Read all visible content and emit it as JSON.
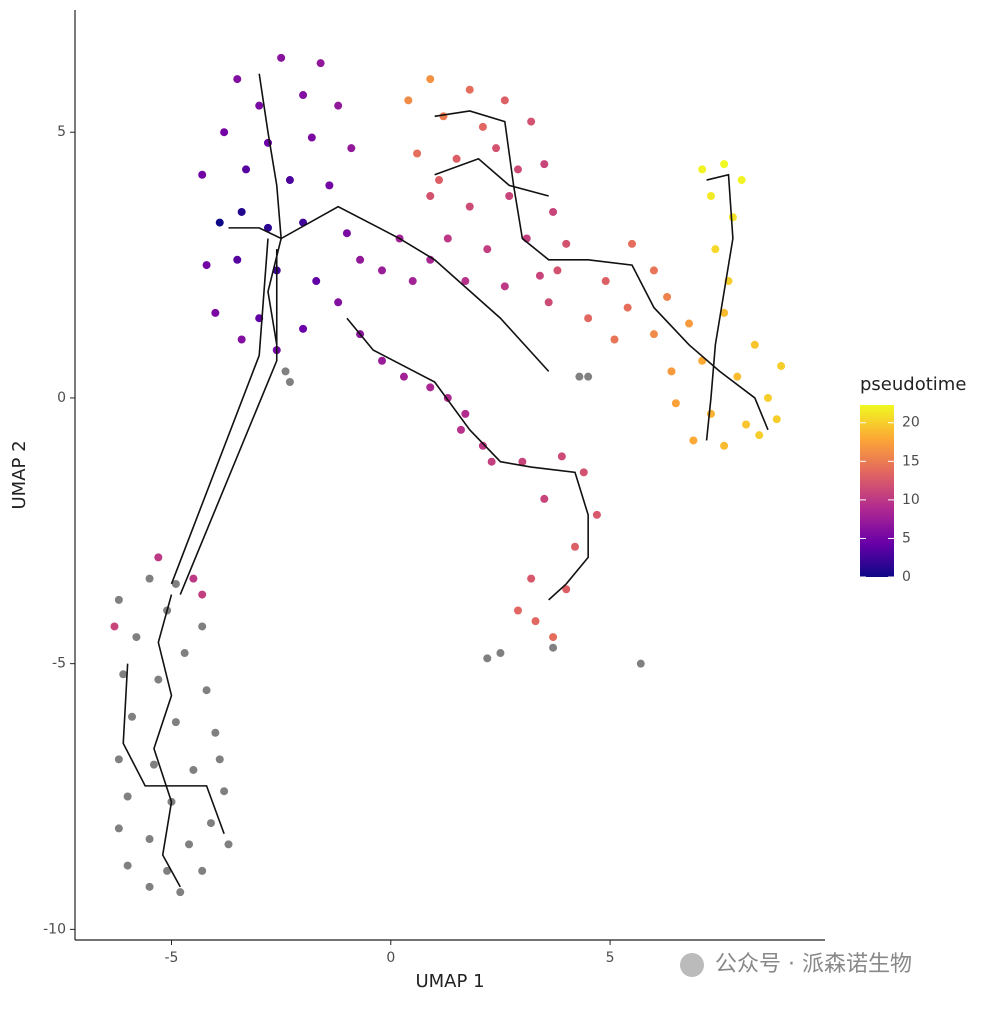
{
  "chart_data": {
    "type": "scatter",
    "x_label": "UMAP 1",
    "y_label": "UMAP 2",
    "xlim": [
      -7.2,
      9.9
    ],
    "ylim": [
      -10.2,
      7.3
    ],
    "xticks": [
      -5,
      0,
      5
    ],
    "yticks": [
      -10,
      -5,
      0,
      5
    ],
    "na_color": "#808080",
    "x": [
      -3.5,
      -2.5,
      -1.6,
      -3.0,
      -2.0,
      -1.2,
      -3.8,
      -2.8,
      -1.8,
      -0.9,
      -4.3,
      -3.3,
      -2.3,
      -1.4,
      -3.9,
      -3.4,
      -2.8,
      -2.0,
      -1.0,
      -4.2,
      -3.5,
      -2.6,
      -1.7,
      -0.7,
      -4.0,
      -3.0,
      -2.0,
      -1.2,
      -2.6,
      -3.4,
      -0.2,
      0.5,
      0.9,
      0.2,
      0.4,
      0.9,
      1.2,
      1.8,
      2.6,
      3.2,
      0.6,
      1.5,
      2.4,
      3.5,
      0.9,
      1.8,
      2.7,
      3.7,
      1.3,
      2.2,
      3.1,
      4.0,
      1.7,
      2.6,
      3.4,
      2.1,
      2.9,
      1.1,
      3.8,
      3.6,
      7.1,
      7.6,
      8.0,
      7.3,
      7.8,
      7.4,
      7.7,
      5.5,
      6.0,
      4.9,
      5.4,
      6.3,
      4.5,
      5.1,
      6.0,
      6.8,
      7.6,
      8.3,
      8.9,
      6.4,
      7.1,
      7.9,
      8.6,
      6.5,
      7.3,
      8.1,
      8.8,
      6.9,
      7.6,
      8.4,
      4.3,
      4.5,
      -0.7,
      -0.2,
      0.3,
      0.9,
      1.3,
      1.7,
      1.6,
      2.1,
      2.3,
      3.0,
      3.9,
      4.4,
      4.7,
      3.5,
      4.2,
      3.2,
      4.0,
      2.9,
      3.7,
      3.3,
      2.2,
      2.5,
      3.7,
      5.7,
      -2.4,
      -2.3,
      -5.3,
      -4.5,
      -4.3,
      -6.3,
      -5.5,
      -4.9,
      -6.2,
      -5.1,
      -4.3,
      -5.8,
      -4.7,
      -6.1,
      -5.3,
      -4.2,
      -5.9,
      -4.9,
      -4.0,
      -6.2,
      -5.4,
      -4.5,
      -3.8,
      -6.0,
      -5.0,
      -4.1,
      -6.2,
      -5.5,
      -4.6,
      -3.7,
      -6.0,
      -5.1,
      -4.3,
      -5.5,
      -4.8,
      -3.9
    ],
    "y": [
      6.0,
      6.4,
      6.3,
      5.5,
      5.7,
      5.5,
      5.0,
      4.8,
      4.9,
      4.7,
      4.2,
      4.3,
      4.1,
      4.0,
      3.3,
      3.5,
      3.2,
      3.3,
      3.1,
      2.5,
      2.6,
      2.4,
      2.2,
      2.6,
      1.6,
      1.5,
      1.3,
      1.8,
      0.9,
      1.1,
      2.4,
      2.2,
      2.6,
      3.0,
      5.6,
      6.0,
      5.3,
      5.8,
      5.6,
      5.2,
      4.6,
      4.5,
      4.7,
      4.4,
      3.8,
      3.6,
      3.8,
      3.5,
      3.0,
      2.8,
      3.0,
      2.9,
      2.2,
      2.1,
      2.3,
      5.1,
      4.3,
      4.1,
      2.4,
      1.8,
      4.3,
      4.4,
      4.1,
      3.8,
      3.4,
      2.8,
      2.2,
      2.9,
      2.4,
      2.2,
      1.7,
      1.9,
      1.5,
      1.1,
      1.2,
      1.4,
      1.6,
      1.0,
      0.6,
      0.5,
      0.7,
      0.4,
      0.0,
      -0.1,
      -0.3,
      -0.5,
      -0.4,
      -0.8,
      -0.9,
      -0.7,
      0.4,
      0.4,
      1.2,
      0.7,
      0.4,
      0.2,
      0.0,
      -0.3,
      -0.6,
      -0.9,
      -1.2,
      -1.2,
      -1.1,
      -1.4,
      -2.2,
      -1.9,
      -2.8,
      -3.4,
      -3.6,
      -4.0,
      -4.5,
      -4.2,
      -4.9,
      -4.8,
      -4.7,
      -5.0,
      0.5,
      0.3,
      -3.0,
      -3.4,
      -3.7,
      -4.3,
      -3.4,
      -3.5,
      -3.8,
      -4.0,
      -4.3,
      -4.5,
      -4.8,
      -5.2,
      -5.3,
      -5.5,
      -6.0,
      -6.1,
      -6.3,
      -6.8,
      -6.9,
      -7.0,
      -7.4,
      -7.5,
      -7.6,
      -8.0,
      -8.1,
      -8.3,
      -8.4,
      -8.4,
      -8.8,
      -8.9,
      -8.9,
      -9.2,
      -9.3,
      -6.8
    ],
    "pseudotime": [
      6,
      6.5,
      7,
      5.5,
      6,
      7,
      5,
      4.5,
      5.5,
      7,
      5,
      3.5,
      3,
      5,
      0,
      1,
      1.5,
      2.5,
      5.5,
      5,
      3.5,
      2.5,
      4,
      7,
      5.5,
      4,
      4.5,
      6,
      5,
      6,
      7.5,
      8,
      8.5,
      8,
      16,
      16.5,
      15,
      14,
      13,
      12,
      14,
      13,
      12,
      11,
      12,
      11.5,
      11,
      11,
      10,
      10.5,
      10.5,
      12,
      9.5,
      10,
      11,
      13.5,
      11.5,
      13,
      12,
      11.5,
      22,
      22.3,
      22,
      21.5,
      21,
      20.5,
      20,
      14,
      14.5,
      13,
      14,
      15.5,
      13.5,
      14.5,
      16,
      17,
      19,
      19.5,
      20,
      17,
      18,
      19,
      20,
      17.5,
      18.5,
      19.5,
      20,
      18,
      19,
      20,
      null,
      null,
      6.5,
      7.5,
      8,
      8.5,
      9,
      9,
      9.5,
      10,
      10.5,
      11,
      11.5,
      12,
      12.5,
      11,
      13,
      12.5,
      13,
      13.5,
      14,
      13.5,
      null,
      null,
      null,
      null,
      null,
      null,
      10,
      10,
      10.5,
      11,
      null,
      null,
      null,
      null,
      null,
      null,
      null,
      null,
      null,
      null,
      null,
      null,
      null,
      null,
      null,
      null,
      null,
      null,
      null,
      null,
      null,
      null,
      null,
      null,
      null,
      null,
      null,
      null,
      null,
      null
    ],
    "trajectory": [
      {
        "x": [
          -3.7,
          -3.0,
          -2.5,
          -1.2,
          0.2,
          1.0,
          2.5,
          3.6
        ],
        "y": [
          3.2,
          3.2,
          3.0,
          3.6,
          3.0,
          2.6,
          1.5,
          0.5
        ]
      },
      {
        "x": [
          -3.0,
          -2.8,
          -2.6,
          -2.5,
          -2.8,
          -2.6
        ],
        "y": [
          6.1,
          5.0,
          4.0,
          3.0,
          2.0,
          1.0
        ]
      },
      {
        "x": [
          -2.8,
          -3.0,
          -5.0
        ],
        "y": [
          3.0,
          0.8,
          -3.5
        ]
      },
      {
        "x": [
          -2.6,
          -2.6,
          -4.8
        ],
        "y": [
          2.8,
          0.7,
          -3.7
        ]
      },
      {
        "x": [
          -1.0,
          -0.4,
          1.0,
          1.8,
          2.5,
          3.2,
          4.2,
          4.5,
          4.5,
          4.0,
          3.6
        ],
        "y": [
          1.5,
          0.9,
          0.3,
          -0.6,
          -1.2,
          -1.3,
          -1.4,
          -2.2,
          -3.0,
          -3.5,
          -3.8
        ]
      },
      {
        "x": [
          1.0,
          1.8,
          2.6,
          2.8,
          3.0,
          3.6,
          4.5,
          5.5,
          6.0,
          6.8,
          7.5,
          8.3,
          8.6
        ],
        "y": [
          5.3,
          5.4,
          5.2,
          4.0,
          3.0,
          2.6,
          2.6,
          2.5,
          1.7,
          1.0,
          0.5,
          0.0,
          -0.6
        ]
      },
      {
        "x": [
          1.0,
          2.0,
          2.7,
          3.6
        ],
        "y": [
          4.2,
          4.5,
          4.0,
          3.8
        ]
      },
      {
        "x": [
          7.2,
          7.7,
          7.8,
          7.6,
          7.4,
          7.3,
          7.2
        ],
        "y": [
          4.1,
          4.2,
          3.0,
          2.0,
          1.0,
          0.0,
          -0.8
        ]
      },
      {
        "x": [
          -5.0,
          -5.3,
          -5.0,
          -5.4,
          -5.0,
          -5.2,
          -4.8
        ],
        "y": [
          -3.7,
          -4.6,
          -5.6,
          -6.6,
          -7.6,
          -8.6,
          -9.2
        ]
      },
      {
        "x": [
          -6.0,
          -6.1,
          -5.6,
          -4.2,
          -3.8
        ],
        "y": [
          -5.0,
          -6.5,
          -7.3,
          -7.3,
          -8.2
        ]
      }
    ],
    "colorbar": {
      "title": "pseudotime",
      "lim": [
        0,
        22.3
      ],
      "ticks": [
        0,
        5,
        10,
        15,
        20
      ],
      "colors": [
        "#0d0887",
        "#6a00a8",
        "#b12a90",
        "#e16462",
        "#fca636",
        "#f0f921"
      ]
    },
    "watermark": "公众号 · 派森诺生物"
  }
}
